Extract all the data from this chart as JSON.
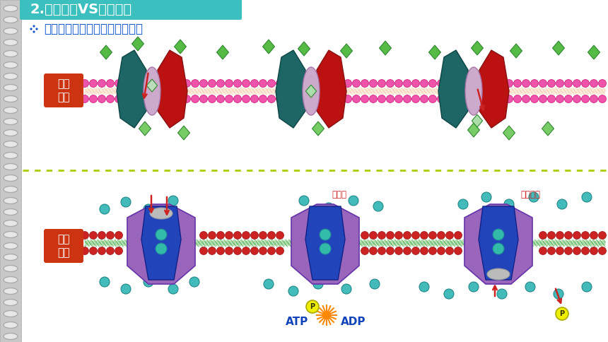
{
  "title": "2.协助扩散VS主动运输",
  "subtitle": "比较协助扩散和主动运输的异同",
  "label_facilitated": "协助\n扩散",
  "label_active": "主动\n运输",
  "header_color": "#3BBFBF",
  "header_text_color": "#FFFFFF",
  "bg_color": "#E8E8E8",
  "separator_color": "#AACC00",
  "subtitle_color": "#1155CC",
  "label_bg_color": "#CC3311",
  "label_text_color": "#FFFFFF",
  "annotation_phospho": "磷酸化",
  "annotation_dephospho": "去磷酸化",
  "annotation_atp": "ATP",
  "annotation_adp": "ADP",
  "fig_width": 8.6,
  "fig_height": 4.84,
  "dpi": 100
}
